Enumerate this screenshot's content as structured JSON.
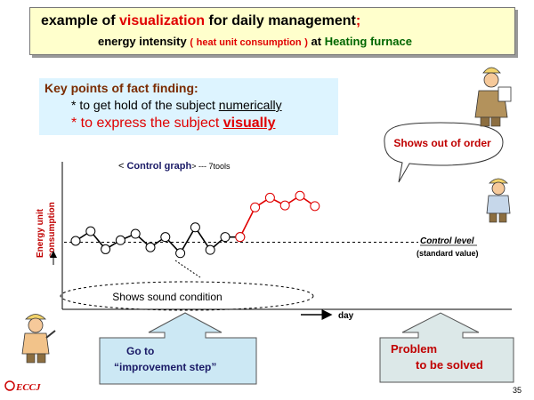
{
  "title": {
    "line1_pre": "example of ",
    "line1_emph": "visualization",
    "line1_post": " for daily management",
    "line1_semicolon": ";",
    "line2_pre": "energy intensity",
    "line2_paren_open": "(",
    "line2_paren_text": "heat unit consumption",
    "line2_paren_close": ")",
    "line2_at": "at",
    "line2_place": "Heating furnace"
  },
  "key_points": {
    "heading": "Key points of fact finding:",
    "bullet1_pre": "* to get hold of the subject ",
    "bullet1_emph": "numerically",
    "bullet2_pre": "* to express the subject ",
    "bullet2_emph": "visually"
  },
  "graph": {
    "title_pre": "< ",
    "title_main": "Control graph",
    "title_post": "> --- 7tools",
    "ylabel_line1": "Energy unit",
    "ylabel_line2": "consumption",
    "xlabel": "day",
    "control_level": "Control level",
    "standard_value": "(standard value)"
  },
  "callouts": {
    "out_of_order": "Shows out of order",
    "sound_condition": "Shows sound condition",
    "improvement_line1": "Go to",
    "improvement_line2": "“improvement step”",
    "problem_line1": "Problem",
    "problem_line2": "to be solved"
  },
  "footer": {
    "logo": "ECCJ",
    "page_number": "35"
  },
  "chart_data": {
    "type": "line",
    "title": "Control graph",
    "xlabel": "day",
    "ylabel": "Energy unit consumption",
    "normal_values": [
      4.0,
      5.5,
      2.7,
      4.1,
      5.1,
      3.0,
      4.6,
      2.1,
      6.1,
      2.6,
      4.6,
      4.6
    ],
    "abnormal_values": [
      4.6,
      9.2,
      10.7,
      9.5,
      11.0,
      9.4
    ],
    "control_level": 3.8
  },
  "colors": {
    "normal_line": "#000000",
    "abnormal_line": "#e00000",
    "title_bg": "#ffffcc",
    "key_points_bg": "#ddf4ff",
    "callout_box_bg": "#cce8f4",
    "problem_box_bg": "#dce8e8"
  }
}
